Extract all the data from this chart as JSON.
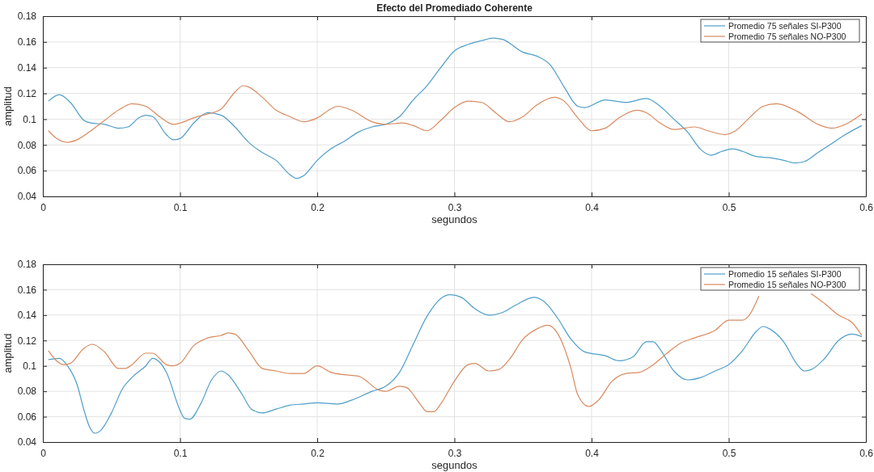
{
  "chart_data": [
    {
      "type": "line",
      "title": "Efecto del Promediado Coherente",
      "xlabel": "segundos",
      "ylabel": "amplitud",
      "xlim": [
        0,
        0.6
      ],
      "xticks": [
        0,
        0.1,
        0.2,
        0.3,
        0.4,
        0.5,
        0.6
      ],
      "ylim": [
        0.04,
        0.18
      ],
      "yticks": [
        0.04,
        0.06,
        0.08,
        0.1,
        0.12,
        0.14,
        0.16,
        0.18
      ],
      "grid": true,
      "legend": "top right",
      "series": [
        {
          "name": "Promedio 75 señales SI-P300",
          "color": "#4f9ec9",
          "x": [
            0.004,
            0.012,
            0.02,
            0.03,
            0.035,
            0.045,
            0.055,
            0.062,
            0.07,
            0.075,
            0.08,
            0.09,
            0.095,
            0.1,
            0.11,
            0.12,
            0.13,
            0.14,
            0.15,
            0.16,
            0.17,
            0.18,
            0.185,
            0.19,
            0.2,
            0.21,
            0.22,
            0.23,
            0.24,
            0.25,
            0.26,
            0.27,
            0.28,
            0.29,
            0.3,
            0.31,
            0.32,
            0.328,
            0.335,
            0.35,
            0.36,
            0.37,
            0.38,
            0.39,
            0.395,
            0.41,
            0.425,
            0.44,
            0.45,
            0.46,
            0.47,
            0.48,
            0.487,
            0.495,
            0.503,
            0.51,
            0.52,
            0.53,
            0.54,
            0.548,
            0.555,
            0.565,
            0.575,
            0.585,
            0.597
          ],
          "values": [
            0.114,
            0.119,
            0.113,
            0.099,
            0.097,
            0.096,
            0.093,
            0.094,
            0.101,
            0.103,
            0.102,
            0.088,
            0.084,
            0.085,
            0.097,
            0.105,
            0.103,
            0.094,
            0.082,
            0.074,
            0.068,
            0.057,
            0.054,
            0.056,
            0.068,
            0.077,
            0.083,
            0.09,
            0.094,
            0.096,
            0.102,
            0.115,
            0.126,
            0.14,
            0.153,
            0.158,
            0.161,
            0.163,
            0.162,
            0.152,
            0.149,
            0.142,
            0.125,
            0.11,
            0.109,
            0.115,
            0.113,
            0.116,
            0.11,
            0.1,
            0.09,
            0.076,
            0.072,
            0.075,
            0.077,
            0.075,
            0.071,
            0.07,
            0.068,
            0.066,
            0.067,
            0.074,
            0.081,
            0.088,
            0.095
          ]
        },
        {
          "name": "Promedio 75 señales NO-P300",
          "color": "#d98a5f",
          "x": [
            0.004,
            0.01,
            0.018,
            0.025,
            0.035,
            0.045,
            0.055,
            0.065,
            0.075,
            0.085,
            0.095,
            0.1,
            0.11,
            0.12,
            0.13,
            0.14,
            0.146,
            0.15,
            0.16,
            0.17,
            0.18,
            0.19,
            0.2,
            0.21,
            0.215,
            0.225,
            0.24,
            0.25,
            0.262,
            0.27,
            0.28,
            0.29,
            0.3,
            0.31,
            0.32,
            0.33,
            0.34,
            0.35,
            0.36,
            0.373,
            0.38,
            0.39,
            0.4,
            0.41,
            0.42,
            0.433,
            0.44,
            0.45,
            0.46,
            0.475,
            0.485,
            0.497,
            0.505,
            0.515,
            0.525,
            0.535,
            0.55,
            0.565,
            0.575,
            0.587,
            0.597
          ],
          "values": [
            0.091,
            0.085,
            0.082,
            0.084,
            0.091,
            0.099,
            0.107,
            0.112,
            0.11,
            0.102,
            0.096,
            0.097,
            0.101,
            0.104,
            0.108,
            0.121,
            0.126,
            0.125,
            0.117,
            0.107,
            0.102,
            0.098,
            0.101,
            0.108,
            0.11,
            0.107,
            0.098,
            0.096,
            0.097,
            0.095,
            0.091,
            0.099,
            0.109,
            0.114,
            0.113,
            0.105,
            0.098,
            0.102,
            0.111,
            0.117,
            0.114,
            0.101,
            0.091,
            0.093,
            0.101,
            0.107,
            0.105,
            0.097,
            0.092,
            0.094,
            0.091,
            0.088,
            0.091,
            0.101,
            0.11,
            0.112,
            0.106,
            0.096,
            0.093,
            0.097,
            0.104
          ]
        }
      ]
    },
    {
      "type": "line",
      "xlabel": "segundos",
      "ylabel": "amplitud",
      "xlim": [
        0,
        0.6
      ],
      "xticks": [
        0,
        0.1,
        0.2,
        0.3,
        0.4,
        0.5,
        0.6
      ],
      "ylim": [
        0.04,
        0.18
      ],
      "yticks": [
        0.04,
        0.06,
        0.08,
        0.1,
        0.12,
        0.14,
        0.16,
        0.18
      ],
      "grid": true,
      "legend": "top right",
      "series": [
        {
          "name": "Promedio 15 señales SI-P300",
          "color": "#4f9ec9",
          "x": [
            0.004,
            0.012,
            0.018,
            0.025,
            0.03,
            0.034,
            0.038,
            0.042,
            0.05,
            0.058,
            0.065,
            0.075,
            0.08,
            0.085,
            0.09,
            0.1,
            0.103,
            0.107,
            0.115,
            0.123,
            0.13,
            0.135,
            0.145,
            0.152,
            0.16,
            0.17,
            0.18,
            0.19,
            0.2,
            0.215,
            0.225,
            0.24,
            0.25,
            0.26,
            0.27,
            0.28,
            0.29,
            0.297,
            0.305,
            0.315,
            0.325,
            0.335,
            0.345,
            0.358,
            0.365,
            0.375,
            0.385,
            0.395,
            0.41,
            0.42,
            0.43,
            0.44,
            0.445,
            0.45,
            0.46,
            0.47,
            0.48,
            0.49,
            0.5,
            0.51,
            0.52,
            0.525,
            0.53,
            0.54,
            0.55,
            0.555,
            0.56,
            0.57,
            0.58,
            0.59,
            0.597
          ],
          "values": [
            0.105,
            0.106,
            0.1,
            0.085,
            0.065,
            0.052,
            0.047,
            0.049,
            0.063,
            0.082,
            0.091,
            0.1,
            0.106,
            0.103,
            0.095,
            0.065,
            0.059,
            0.058,
            0.07,
            0.089,
            0.096,
            0.093,
            0.078,
            0.066,
            0.063,
            0.066,
            0.069,
            0.07,
            0.071,
            0.07,
            0.073,
            0.08,
            0.084,
            0.095,
            0.117,
            0.139,
            0.153,
            0.156,
            0.154,
            0.145,
            0.14,
            0.142,
            0.148,
            0.154,
            0.151,
            0.138,
            0.121,
            0.111,
            0.108,
            0.104,
            0.107,
            0.119,
            0.119,
            0.113,
            0.096,
            0.089,
            0.091,
            0.096,
            0.101,
            0.112,
            0.127,
            0.131,
            0.129,
            0.119,
            0.101,
            0.096,
            0.097,
            0.106,
            0.12,
            0.125,
            0.123
          ]
        },
        {
          "name": "Promedio 15 señales NO-P300",
          "color": "#d98a5f",
          "x": [
            0.004,
            0.01,
            0.015,
            0.02,
            0.03,
            0.036,
            0.045,
            0.055,
            0.06,
            0.065,
            0.075,
            0.08,
            0.09,
            0.095,
            0.1,
            0.11,
            0.12,
            0.13,
            0.135,
            0.14,
            0.15,
            0.16,
            0.17,
            0.18,
            0.19,
            0.2,
            0.21,
            0.22,
            0.23,
            0.245,
            0.25,
            0.26,
            0.265,
            0.275,
            0.28,
            0.285,
            0.29,
            0.3,
            0.31,
            0.315,
            0.325,
            0.332,
            0.34,
            0.35,
            0.36,
            0.368,
            0.375,
            0.385,
            0.39,
            0.398,
            0.405,
            0.415,
            0.425,
            0.435,
            0.445,
            0.455,
            0.465,
            0.475,
            0.49,
            0.5,
            0.51,
            0.515,
            0.522,
            0.53,
            0.54,
            0.55,
            0.56,
            0.57,
            0.58,
            0.59,
            0.597
          ],
          "values": [
            0.112,
            0.104,
            0.101,
            0.102,
            0.114,
            0.117,
            0.111,
            0.098,
            0.098,
            0.101,
            0.11,
            0.11,
            0.101,
            0.1,
            0.102,
            0.116,
            0.122,
            0.124,
            0.126,
            0.125,
            0.112,
            0.098,
            0.096,
            0.094,
            0.094,
            0.1,
            0.095,
            0.093,
            0.092,
            0.081,
            0.08,
            0.084,
            0.083,
            0.07,
            0.064,
            0.064,
            0.07,
            0.088,
            0.101,
            0.102,
            0.096,
            0.097,
            0.105,
            0.121,
            0.129,
            0.132,
            0.126,
            0.098,
            0.077,
            0.068,
            0.073,
            0.088,
            0.094,
            0.095,
            0.101,
            0.11,
            0.118,
            0.122,
            0.128,
            0.136,
            0.136,
            0.14,
            0.155,
            null,
            null,
            null,
            0.157,
            0.149,
            0.14,
            0.134,
            0.124
          ]
        }
      ]
    }
  ]
}
